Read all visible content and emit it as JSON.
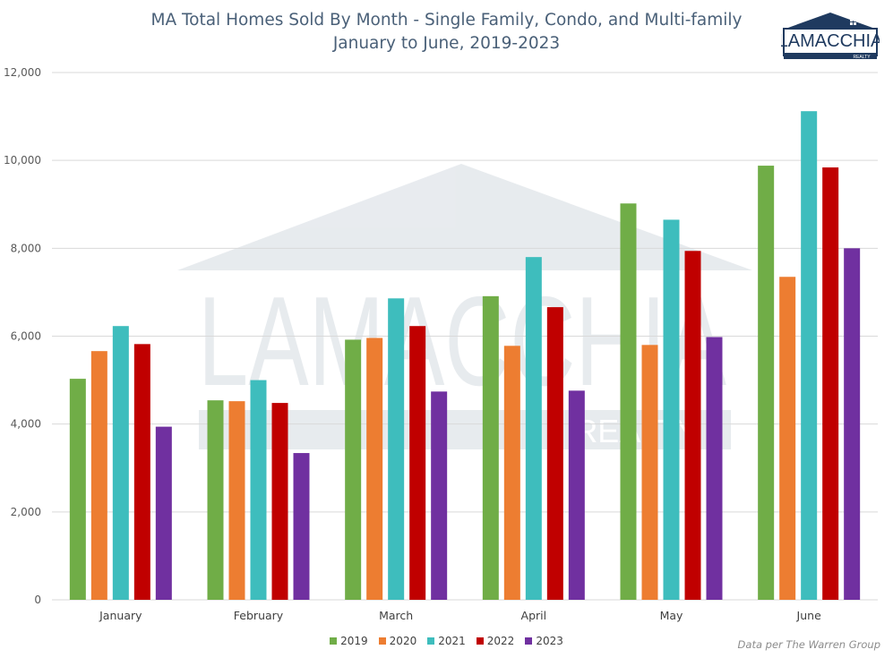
{
  "header": {
    "title_line1": "MA Total Homes Sold By Month - Single Family, Condo, and Multi-family",
    "title_line2": "January to June, 2019-2023"
  },
  "logo": {
    "name": "LAMACCHIA",
    "sub": "REALTY"
  },
  "watermark": {
    "name": "LAMACCHIA",
    "sub": "REALTY"
  },
  "source_note": "Data per The Warren Group",
  "colors": {
    "2019": "#70ad47",
    "2020": "#ed7d31",
    "2021": "#3ebdbd",
    "2022": "#c00000",
    "2023": "#7030a0",
    "grid": "#d9d9d9",
    "title": "#4a6078",
    "logo_navy": "#1f3a5f"
  },
  "chart_data": {
    "type": "bar",
    "title": "MA Total Homes Sold By Month - Single Family, Condo, and Multi-family",
    "subtitle": "January to June, 2019-2023",
    "categories": [
      "January",
      "February",
      "March",
      "April",
      "May",
      "June"
    ],
    "series": [
      {
        "name": "2019",
        "values": [
          5030,
          4540,
          5920,
          6910,
          9020,
          9880
        ]
      },
      {
        "name": "2020",
        "values": [
          5660,
          4520,
          5960,
          5780,
          5800,
          7350
        ]
      },
      {
        "name": "2021",
        "values": [
          6230,
          5000,
          6860,
          7800,
          8650,
          11120
        ]
      },
      {
        "name": "2022",
        "values": [
          5820,
          4480,
          6230,
          6660,
          7940,
          9840
        ]
      },
      {
        "name": "2023",
        "values": [
          3940,
          3340,
          4740,
          4760,
          5980,
          8000
        ]
      }
    ],
    "ylim": [
      0,
      12000
    ],
    "yticks": [
      "0",
      "2,000",
      "4,000",
      "6,000",
      "8,000",
      "10,000",
      "12,000"
    ],
    "grid": true,
    "legend_position": "bottom"
  }
}
